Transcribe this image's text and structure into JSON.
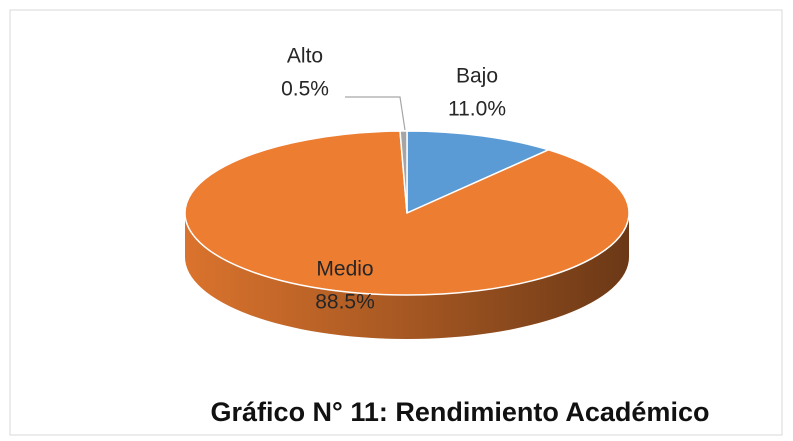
{
  "chart_data": {
    "type": "pie3d",
    "title": "Gráfico N° 11: Rendimiento Académico",
    "categories": [
      "Bajo",
      "Medio",
      "Alto"
    ],
    "values": [
      11.0,
      88.5,
      0.5
    ],
    "value_labels": [
      "11.0%",
      "88.5%",
      "0.5%"
    ],
    "colors": [
      "#5b9bd5",
      "#ed7d31",
      "#a5a5a5"
    ]
  }
}
